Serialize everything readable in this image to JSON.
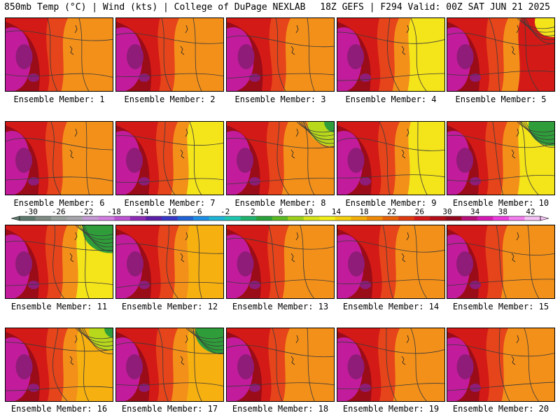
{
  "header": {
    "left_title": "850mb Temp (°C) | Wind (kts) | College of DuPage NEXLAB",
    "right_title": "18Z GEFS | F294 Valid: 00Z SAT JUN 21 2025"
  },
  "panel_label_prefix": "Ensemble Member:",
  "members": [
    "1",
    "2",
    "3",
    "4",
    "5",
    "6",
    "7",
    "8",
    "9",
    "10",
    "11",
    "12",
    "13",
    "14",
    "15",
    "16",
    "17",
    "18",
    "19",
    "20"
  ],
  "colorbar": {
    "tick_labels": [
      "-30",
      "-26",
      "-22",
      "-18",
      "-14",
      "-10",
      "-6",
      "-2",
      "2",
      "6",
      "10",
      "14",
      "18",
      "22",
      "26",
      "30",
      "34",
      "38",
      "42"
    ],
    "colors": [
      "#5e7a6e",
      "#7f8d84",
      "#9aa29d",
      "#a7a7ad",
      "#c59bd6",
      "#d37fe3",
      "#bf55d4",
      "#8e2bb7",
      "#5c1fa8",
      "#3838c8",
      "#2164d8",
      "#1e8fe6",
      "#20b6d8",
      "#1fc7b0",
      "#20b46e",
      "#2aa43a",
      "#5cbc24",
      "#9ed21c",
      "#d8e61c",
      "#f4f01a",
      "#f6d20e",
      "#f6ae0a",
      "#f08a08",
      "#e86208",
      "#e03a10",
      "#d41818",
      "#b40e1a",
      "#94081e",
      "#b8107a",
      "#d61ab6",
      "#ee3ee0",
      "#f47ef0",
      "#f6c2f6"
    ]
  },
  "palette": {
    "magenta": "#c21c9c",
    "purple": "#8e1c78",
    "darkred": "#9a0c18",
    "red": "#d41a16",
    "redorange": "#e6441a",
    "orange": "#f3901a",
    "amber": "#f6b010",
    "yellow": "#f4e41a",
    "lime": "#b8d81c",
    "green": "#2f9e3a",
    "contour": "#3a3a3a"
  }
}
